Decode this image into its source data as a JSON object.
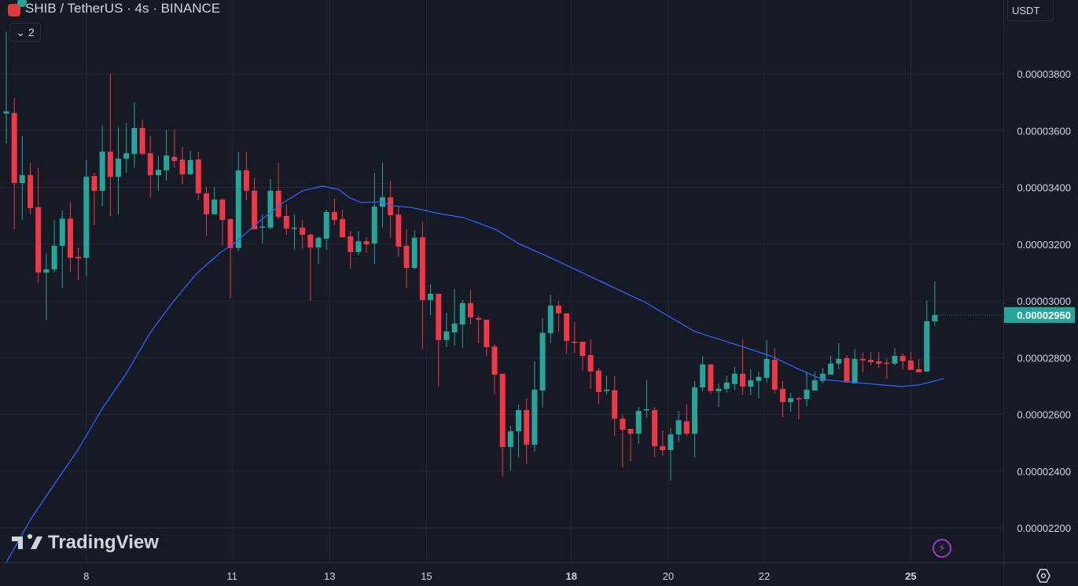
{
  "header": {
    "title": "SHIB / TetherUS · 4s · BINANCE",
    "indicator_count": "2"
  },
  "price_axis": {
    "currency": "USDT",
    "last_price_label": "0.00002950"
  },
  "branding": {
    "logo_text": "TradingView"
  },
  "colors": {
    "up": "#26a69a",
    "down": "#f23645",
    "ma": "#2962ff",
    "background": "#161a25",
    "grid": "#232733"
  },
  "icons": {
    "collapse": "chevron-down-icon",
    "alert": "lightning-icon",
    "settings": "gear-icon"
  },
  "chart_data": {
    "type": "candlestick",
    "price_scale": "1e-8",
    "ylim": [
      2000,
      4000
    ],
    "y_ticks": [
      {
        "value": 3800,
        "label": "0.00003800"
      },
      {
        "value": 3600,
        "label": "0.00003600"
      },
      {
        "value": 3400,
        "label": "0.00003400"
      },
      {
        "value": 3200,
        "label": "0.00003200"
      },
      {
        "value": 3000,
        "label": "0.00003000"
      },
      {
        "value": 2800,
        "label": "0.00002800"
      },
      {
        "value": 2600,
        "label": "0.00002600"
      },
      {
        "value": 2400,
        "label": "0.00002400"
      },
      {
        "value": 2200,
        "label": "0.00002200"
      }
    ],
    "x_ticks": [
      {
        "index": 10,
        "label": "8",
        "bold": false
      },
      {
        "index": 28.2,
        "label": "11",
        "bold": false
      },
      {
        "index": 40.4,
        "label": "13",
        "bold": false
      },
      {
        "index": 52.5,
        "label": "15",
        "bold": false
      },
      {
        "index": 70.6,
        "label": "18",
        "bold": true
      },
      {
        "index": 82.7,
        "label": "20",
        "bold": false
      },
      {
        "index": 94.7,
        "label": "22",
        "bold": false
      },
      {
        "index": 113,
        "label": "25",
        "bold": true
      }
    ],
    "last_price": 2950,
    "ohlc": [
      [
        3660,
        3950,
        3555,
        3668
      ],
      [
        3662,
        3714,
        3252,
        3415
      ],
      [
        3415,
        3581,
        3285,
        3443
      ],
      [
        3443,
        3487,
        3305,
        3327
      ],
      [
        3330,
        3470,
        3064,
        3100
      ],
      [
        3100,
        3166,
        2931,
        3111
      ],
      [
        3111,
        3285,
        3100,
        3194
      ],
      [
        3194,
        3318,
        3045,
        3290
      ],
      [
        3290,
        3349,
        3100,
        3152
      ],
      [
        3155,
        3188,
        3072,
        3150
      ],
      [
        3152,
        3498,
        3086,
        3437
      ],
      [
        3440,
        3451,
        3266,
        3388
      ],
      [
        3388,
        3617,
        3335,
        3526
      ],
      [
        3526,
        3800,
        3299,
        3437
      ],
      [
        3437,
        3612,
        3305,
        3501
      ],
      [
        3501,
        3626,
        3451,
        3520
      ],
      [
        3518,
        3700,
        3470,
        3609
      ],
      [
        3609,
        3640,
        3512,
        3518
      ],
      [
        3520,
        3581,
        3363,
        3443
      ],
      [
        3443,
        3512,
        3388,
        3462
      ],
      [
        3460,
        3603,
        3424,
        3512
      ],
      [
        3507,
        3603,
        3470,
        3493
      ],
      [
        3498,
        3543,
        3410,
        3446
      ],
      [
        3446,
        3529,
        3443,
        3496
      ],
      [
        3498,
        3526,
        3354,
        3379
      ],
      [
        3379,
        3401,
        3230,
        3305
      ],
      [
        3305,
        3401,
        3305,
        3357
      ],
      [
        3357,
        3363,
        3194,
        3285
      ],
      [
        3288,
        3290,
        3008,
        3186
      ],
      [
        3186,
        3526,
        3175,
        3460
      ],
      [
        3460,
        3526,
        3354,
        3388
      ],
      [
        3388,
        3432,
        3252,
        3252
      ],
      [
        3258,
        3305,
        3202,
        3262
      ],
      [
        3258,
        3429,
        3252,
        3388
      ],
      [
        3388,
        3487,
        3288,
        3296
      ],
      [
        3299,
        3340,
        3233,
        3255
      ],
      [
        3255,
        3305,
        3180,
        3258
      ],
      [
        3258,
        3285,
        3183,
        3233
      ],
      [
        3233,
        3238,
        3000,
        3188
      ],
      [
        3188,
        3227,
        3130,
        3222
      ],
      [
        3219,
        3321,
        3180,
        3313
      ],
      [
        3313,
        3360,
        3266,
        3285
      ],
      [
        3288,
        3321,
        3224,
        3224
      ],
      [
        3227,
        3246,
        3114,
        3172
      ],
      [
        3172,
        3246,
        3161,
        3210
      ],
      [
        3210,
        3224,
        3169,
        3199
      ],
      [
        3202,
        3451,
        3130,
        3332
      ],
      [
        3332,
        3487,
        3260,
        3365
      ],
      [
        3365,
        3424,
        3222,
        3302
      ],
      [
        3304,
        3332,
        3155,
        3191
      ],
      [
        3194,
        3252,
        3045,
        3116
      ],
      [
        3116,
        3249,
        3111,
        3222
      ],
      [
        3224,
        3280,
        2828,
        3003
      ],
      [
        3003,
        3058,
        2950,
        3025
      ],
      [
        3025,
        3025,
        2698,
        2862
      ],
      [
        2862,
        2958,
        2837,
        2892
      ],
      [
        2889,
        3042,
        2842,
        2920
      ],
      [
        2917,
        3003,
        2834,
        2992
      ],
      [
        2992,
        3039,
        2917,
        2942
      ],
      [
        2939,
        2948,
        2851,
        2934
      ],
      [
        2934,
        2934,
        2806,
        2837
      ],
      [
        2839,
        2848,
        2671,
        2740
      ],
      [
        2743,
        2743,
        2380,
        2485
      ],
      [
        2485,
        2560,
        2402,
        2540
      ],
      [
        2540,
        2635,
        2449,
        2615
      ],
      [
        2615,
        2657,
        2427,
        2493
      ],
      [
        2493,
        2787,
        2468,
        2687
      ],
      [
        2684,
        2939,
        2624,
        2887
      ],
      [
        2886,
        3022,
        2851,
        2983
      ],
      [
        2983,
        3000,
        2892,
        2956
      ],
      [
        2956,
        2956,
        2812,
        2859
      ],
      [
        2856,
        2925,
        2817,
        2853
      ],
      [
        2856,
        2856,
        2754,
        2806
      ],
      [
        2809,
        2864,
        2690,
        2751
      ],
      [
        2754,
        2765,
        2635,
        2679
      ],
      [
        2682,
        2737,
        2671,
        2687
      ],
      [
        2685,
        2737,
        2524,
        2585
      ],
      [
        2585,
        2599,
        2413,
        2546
      ],
      [
        2549,
        2549,
        2435,
        2532
      ],
      [
        2532,
        2626,
        2496,
        2612
      ],
      [
        2615,
        2720,
        2588,
        2618
      ],
      [
        2615,
        2626,
        2449,
        2488
      ],
      [
        2488,
        2543,
        2455,
        2474
      ],
      [
        2474,
        2551,
        2366,
        2529
      ],
      [
        2529,
        2612,
        2502,
        2579
      ],
      [
        2576,
        2635,
        2524,
        2532
      ],
      [
        2532,
        2718,
        2449,
        2695
      ],
      [
        2695,
        2806,
        2682,
        2776
      ],
      [
        2776,
        2776,
        2671,
        2682
      ],
      [
        2682,
        2709,
        2626,
        2690
      ],
      [
        2690,
        2737,
        2676,
        2712
      ],
      [
        2707,
        2768,
        2685,
        2743
      ],
      [
        2743,
        2864,
        2668,
        2698
      ],
      [
        2698,
        2759,
        2668,
        2720
      ],
      [
        2718,
        2751,
        2657,
        2732
      ],
      [
        2729,
        2862,
        2712,
        2795
      ],
      [
        2792,
        2834,
        2673,
        2687
      ],
      [
        2690,
        2718,
        2590,
        2643
      ],
      [
        2643,
        2676,
        2610,
        2657
      ],
      [
        2657,
        2662,
        2582,
        2654
      ],
      [
        2654,
        2751,
        2629,
        2687
      ],
      [
        2684,
        2751,
        2684,
        2720
      ],
      [
        2718,
        2762,
        2709,
        2743
      ],
      [
        2740,
        2806,
        2740,
        2779
      ],
      [
        2779,
        2851,
        2759,
        2795
      ],
      [
        2798,
        2809,
        2712,
        2712
      ],
      [
        2709,
        2831,
        2709,
        2795
      ],
      [
        2795,
        2817,
        2748,
        2790
      ],
      [
        2792,
        2820,
        2773,
        2784
      ],
      [
        2787,
        2820,
        2765,
        2779
      ],
      [
        2782,
        2798,
        2726,
        2779
      ],
      [
        2779,
        2834,
        2773,
        2806
      ],
      [
        2806,
        2815,
        2757,
        2787
      ],
      [
        2790,
        2820,
        2757,
        2757
      ],
      [
        2759,
        2795,
        2748,
        2748
      ],
      [
        2751,
        3000,
        2751,
        2928
      ],
      [
        2928,
        3069,
        2911,
        2950
      ]
    ],
    "moving_average": [
      [
        0,
        2078
      ],
      [
        3.1,
        2233
      ],
      [
        6.1,
        2358
      ],
      [
        9,
        2477
      ],
      [
        12,
        2621
      ],
      [
        14.9,
        2740
      ],
      [
        17.9,
        2884
      ],
      [
        20.8,
        2995
      ],
      [
        23.8,
        3097
      ],
      [
        26.7,
        3169
      ],
      [
        28.7,
        3208
      ],
      [
        31.6,
        3280
      ],
      [
        34.6,
        3346
      ],
      [
        37,
        3388
      ],
      [
        39.5,
        3404
      ],
      [
        41.5,
        3393
      ],
      [
        42.9,
        3363
      ],
      [
        44.4,
        3346
      ],
      [
        46.7,
        3349
      ],
      [
        48.3,
        3335
      ],
      [
        50.6,
        3329
      ],
      [
        54.2,
        3307
      ],
      [
        57.2,
        3293
      ],
      [
        61.1,
        3252
      ],
      [
        64,
        3202
      ],
      [
        68,
        3152
      ],
      [
        74.6,
        3064
      ],
      [
        79.8,
        2995
      ],
      [
        86,
        2892
      ],
      [
        91.6,
        2842
      ],
      [
        95.5,
        2806
      ],
      [
        99.4,
        2754
      ],
      [
        102,
        2723
      ],
      [
        107.3,
        2709
      ],
      [
        111.9,
        2698
      ],
      [
        114.1,
        2704
      ],
      [
        117.1,
        2726
      ]
    ]
  }
}
